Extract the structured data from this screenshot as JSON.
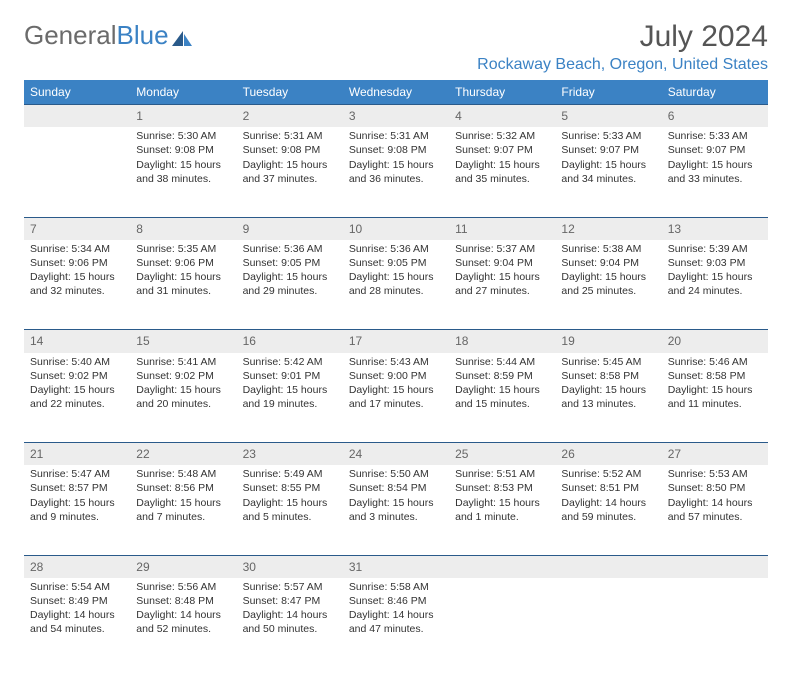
{
  "logo": {
    "text_gray": "General",
    "text_blue": "Blue"
  },
  "title": "July 2024",
  "location": "Rockaway Beach, Oregon, United States",
  "colors": {
    "header_bg": "#3b82c4",
    "header_text": "#ffffff",
    "daynum_bg": "#ededed",
    "row_border": "#2a5a8a",
    "body_text": "#333333",
    "logo_gray": "#6b6b6b",
    "logo_blue": "#3b82c4"
  },
  "day_headers": [
    "Sunday",
    "Monday",
    "Tuesday",
    "Wednesday",
    "Thursday",
    "Friday",
    "Saturday"
  ],
  "weeks": [
    {
      "nums": [
        "",
        "1",
        "2",
        "3",
        "4",
        "5",
        "6"
      ],
      "cells": [
        null,
        {
          "sunrise": "Sunrise: 5:30 AM",
          "sunset": "Sunset: 9:08 PM",
          "daylight": "Daylight: 15 hours and 38 minutes."
        },
        {
          "sunrise": "Sunrise: 5:31 AM",
          "sunset": "Sunset: 9:08 PM",
          "daylight": "Daylight: 15 hours and 37 minutes."
        },
        {
          "sunrise": "Sunrise: 5:31 AM",
          "sunset": "Sunset: 9:08 PM",
          "daylight": "Daylight: 15 hours and 36 minutes."
        },
        {
          "sunrise": "Sunrise: 5:32 AM",
          "sunset": "Sunset: 9:07 PM",
          "daylight": "Daylight: 15 hours and 35 minutes."
        },
        {
          "sunrise": "Sunrise: 5:33 AM",
          "sunset": "Sunset: 9:07 PM",
          "daylight": "Daylight: 15 hours and 34 minutes."
        },
        {
          "sunrise": "Sunrise: 5:33 AM",
          "sunset": "Sunset: 9:07 PM",
          "daylight": "Daylight: 15 hours and 33 minutes."
        }
      ]
    },
    {
      "nums": [
        "7",
        "8",
        "9",
        "10",
        "11",
        "12",
        "13"
      ],
      "cells": [
        {
          "sunrise": "Sunrise: 5:34 AM",
          "sunset": "Sunset: 9:06 PM",
          "daylight": "Daylight: 15 hours and 32 minutes."
        },
        {
          "sunrise": "Sunrise: 5:35 AM",
          "sunset": "Sunset: 9:06 PM",
          "daylight": "Daylight: 15 hours and 31 minutes."
        },
        {
          "sunrise": "Sunrise: 5:36 AM",
          "sunset": "Sunset: 9:05 PM",
          "daylight": "Daylight: 15 hours and 29 minutes."
        },
        {
          "sunrise": "Sunrise: 5:36 AM",
          "sunset": "Sunset: 9:05 PM",
          "daylight": "Daylight: 15 hours and 28 minutes."
        },
        {
          "sunrise": "Sunrise: 5:37 AM",
          "sunset": "Sunset: 9:04 PM",
          "daylight": "Daylight: 15 hours and 27 minutes."
        },
        {
          "sunrise": "Sunrise: 5:38 AM",
          "sunset": "Sunset: 9:04 PM",
          "daylight": "Daylight: 15 hours and 25 minutes."
        },
        {
          "sunrise": "Sunrise: 5:39 AM",
          "sunset": "Sunset: 9:03 PM",
          "daylight": "Daylight: 15 hours and 24 minutes."
        }
      ]
    },
    {
      "nums": [
        "14",
        "15",
        "16",
        "17",
        "18",
        "19",
        "20"
      ],
      "cells": [
        {
          "sunrise": "Sunrise: 5:40 AM",
          "sunset": "Sunset: 9:02 PM",
          "daylight": "Daylight: 15 hours and 22 minutes."
        },
        {
          "sunrise": "Sunrise: 5:41 AM",
          "sunset": "Sunset: 9:02 PM",
          "daylight": "Daylight: 15 hours and 20 minutes."
        },
        {
          "sunrise": "Sunrise: 5:42 AM",
          "sunset": "Sunset: 9:01 PM",
          "daylight": "Daylight: 15 hours and 19 minutes."
        },
        {
          "sunrise": "Sunrise: 5:43 AM",
          "sunset": "Sunset: 9:00 PM",
          "daylight": "Daylight: 15 hours and 17 minutes."
        },
        {
          "sunrise": "Sunrise: 5:44 AM",
          "sunset": "Sunset: 8:59 PM",
          "daylight": "Daylight: 15 hours and 15 minutes."
        },
        {
          "sunrise": "Sunrise: 5:45 AM",
          "sunset": "Sunset: 8:58 PM",
          "daylight": "Daylight: 15 hours and 13 minutes."
        },
        {
          "sunrise": "Sunrise: 5:46 AM",
          "sunset": "Sunset: 8:58 PM",
          "daylight": "Daylight: 15 hours and 11 minutes."
        }
      ]
    },
    {
      "nums": [
        "21",
        "22",
        "23",
        "24",
        "25",
        "26",
        "27"
      ],
      "cells": [
        {
          "sunrise": "Sunrise: 5:47 AM",
          "sunset": "Sunset: 8:57 PM",
          "daylight": "Daylight: 15 hours and 9 minutes."
        },
        {
          "sunrise": "Sunrise: 5:48 AM",
          "sunset": "Sunset: 8:56 PM",
          "daylight": "Daylight: 15 hours and 7 minutes."
        },
        {
          "sunrise": "Sunrise: 5:49 AM",
          "sunset": "Sunset: 8:55 PM",
          "daylight": "Daylight: 15 hours and 5 minutes."
        },
        {
          "sunrise": "Sunrise: 5:50 AM",
          "sunset": "Sunset: 8:54 PM",
          "daylight": "Daylight: 15 hours and 3 minutes."
        },
        {
          "sunrise": "Sunrise: 5:51 AM",
          "sunset": "Sunset: 8:53 PM",
          "daylight": "Daylight: 15 hours and 1 minute."
        },
        {
          "sunrise": "Sunrise: 5:52 AM",
          "sunset": "Sunset: 8:51 PM",
          "daylight": "Daylight: 14 hours and 59 minutes."
        },
        {
          "sunrise": "Sunrise: 5:53 AM",
          "sunset": "Sunset: 8:50 PM",
          "daylight": "Daylight: 14 hours and 57 minutes."
        }
      ]
    },
    {
      "nums": [
        "28",
        "29",
        "30",
        "31",
        "",
        "",
        ""
      ],
      "cells": [
        {
          "sunrise": "Sunrise: 5:54 AM",
          "sunset": "Sunset: 8:49 PM",
          "daylight": "Daylight: 14 hours and 54 minutes."
        },
        {
          "sunrise": "Sunrise: 5:56 AM",
          "sunset": "Sunset: 8:48 PM",
          "daylight": "Daylight: 14 hours and 52 minutes."
        },
        {
          "sunrise": "Sunrise: 5:57 AM",
          "sunset": "Sunset: 8:47 PM",
          "daylight": "Daylight: 14 hours and 50 minutes."
        },
        {
          "sunrise": "Sunrise: 5:58 AM",
          "sunset": "Sunset: 8:46 PM",
          "daylight": "Daylight: 14 hours and 47 minutes."
        },
        null,
        null,
        null
      ]
    }
  ]
}
